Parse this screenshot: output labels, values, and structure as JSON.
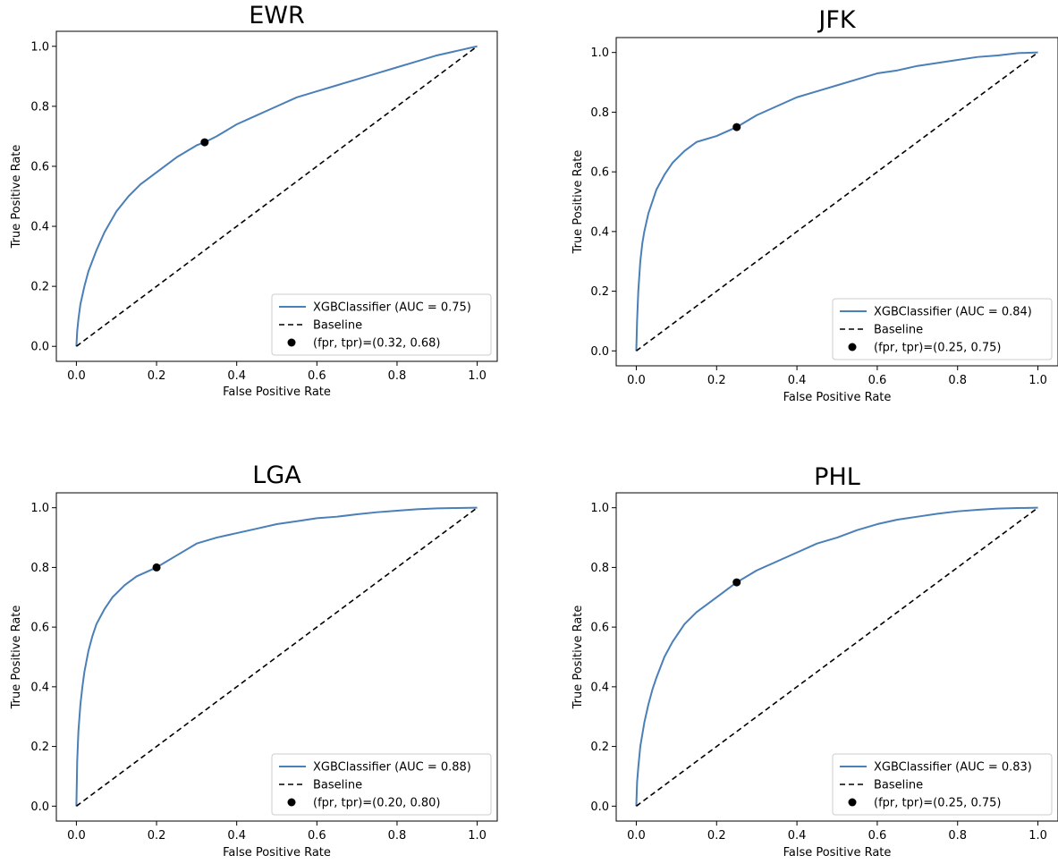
{
  "chart_data": [
    {
      "type": "line",
      "title": "EWR",
      "xlabel": "False Positive Rate",
      "ylabel": "True Positive Rate",
      "xlim": [
        0.0,
        1.0
      ],
      "ylim": [
        0.0,
        1.0
      ],
      "xticks": [
        "0.0",
        "0.2",
        "0.4",
        "0.6",
        "0.8",
        "1.0"
      ],
      "yticks": [
        "0.0",
        "0.2",
        "0.4",
        "0.6",
        "0.8",
        "1.0"
      ],
      "grid": false,
      "legend_position": "lower-right",
      "series": [
        {
          "name": "XGBClassifier (AUC = 0.75)",
          "kind": "line",
          "color": "#4a7fb8",
          "x": [
            0,
            0.002,
            0.005,
            0.01,
            0.02,
            0.03,
            0.05,
            0.07,
            0.1,
            0.13,
            0.16,
            0.2,
            0.25,
            0.3,
            0.32,
            0.35,
            0.4,
            0.45,
            0.5,
            0.55,
            0.6,
            0.65,
            0.7,
            0.75,
            0.8,
            0.85,
            0.9,
            0.95,
            1.0
          ],
          "y": [
            0,
            0.05,
            0.09,
            0.14,
            0.2,
            0.25,
            0.32,
            0.38,
            0.45,
            0.5,
            0.54,
            0.58,
            0.63,
            0.67,
            0.68,
            0.7,
            0.74,
            0.77,
            0.8,
            0.83,
            0.85,
            0.87,
            0.89,
            0.91,
            0.93,
            0.95,
            0.97,
            0.985,
            1.0
          ]
        },
        {
          "name": "Baseline",
          "kind": "dashed",
          "color": "#000000",
          "x": [
            0,
            1
          ],
          "y": [
            0,
            1
          ]
        },
        {
          "name": "(fpr, tpr)=(0.32, 0.68)",
          "kind": "point",
          "color": "#000000",
          "x": [
            0.32
          ],
          "y": [
            0.68
          ]
        }
      ]
    },
    {
      "type": "line",
      "title": "JFK",
      "xlabel": "False Positive Rate",
      "ylabel": "True Positive Rate",
      "xlim": [
        0.0,
        1.0
      ],
      "ylim": [
        0.0,
        1.0
      ],
      "xticks": [
        "0.0",
        "0.2",
        "0.4",
        "0.6",
        "0.8",
        "1.0"
      ],
      "yticks": [
        "0.0",
        "0.2",
        "0.4",
        "0.6",
        "0.8",
        "1.0"
      ],
      "grid": false,
      "legend_position": "lower-right",
      "series": [
        {
          "name": "XGBClassifier (AUC = 0.84)",
          "kind": "line",
          "color": "#4a7fb8",
          "x": [
            0,
            0.002,
            0.005,
            0.01,
            0.015,
            0.02,
            0.03,
            0.04,
            0.05,
            0.07,
            0.09,
            0.12,
            0.15,
            0.2,
            0.25,
            0.3,
            0.35,
            0.4,
            0.45,
            0.5,
            0.55,
            0.6,
            0.65,
            0.7,
            0.75,
            0.8,
            0.85,
            0.9,
            0.95,
            1.0
          ],
          "y": [
            0,
            0.1,
            0.2,
            0.3,
            0.36,
            0.4,
            0.46,
            0.5,
            0.54,
            0.59,
            0.63,
            0.67,
            0.7,
            0.72,
            0.75,
            0.79,
            0.82,
            0.85,
            0.87,
            0.89,
            0.91,
            0.93,
            0.94,
            0.955,
            0.965,
            0.975,
            0.985,
            0.99,
            0.998,
            1.0
          ]
        },
        {
          "name": "Baseline",
          "kind": "dashed",
          "color": "#000000",
          "x": [
            0,
            1
          ],
          "y": [
            0,
            1
          ]
        },
        {
          "name": "(fpr, tpr)=(0.25, 0.75)",
          "kind": "point",
          "color": "#000000",
          "x": [
            0.25
          ],
          "y": [
            0.75
          ]
        }
      ]
    },
    {
      "type": "line",
      "title": "LGA",
      "xlabel": "False Positive Rate",
      "ylabel": "True Positive Rate",
      "xlim": [
        0.0,
        1.0
      ],
      "ylim": [
        0.0,
        1.0
      ],
      "xticks": [
        "0.0",
        "0.2",
        "0.4",
        "0.6",
        "0.8",
        "1.0"
      ],
      "yticks": [
        "0.0",
        "0.2",
        "0.4",
        "0.6",
        "0.8",
        "1.0"
      ],
      "grid": false,
      "legend_position": "lower-right",
      "series": [
        {
          "name": "XGBClassifier (AUC = 0.88)",
          "kind": "line",
          "color": "#4a7fb8",
          "x": [
            0,
            0.002,
            0.005,
            0.01,
            0.015,
            0.02,
            0.03,
            0.04,
            0.05,
            0.07,
            0.09,
            0.12,
            0.15,
            0.2,
            0.25,
            0.3,
            0.35,
            0.4,
            0.45,
            0.5,
            0.55,
            0.6,
            0.65,
            0.7,
            0.75,
            0.8,
            0.85,
            0.9,
            0.95,
            1.0
          ],
          "y": [
            0,
            0.15,
            0.25,
            0.34,
            0.4,
            0.45,
            0.52,
            0.57,
            0.61,
            0.66,
            0.7,
            0.74,
            0.77,
            0.8,
            0.84,
            0.88,
            0.9,
            0.915,
            0.93,
            0.945,
            0.955,
            0.965,
            0.97,
            0.978,
            0.985,
            0.99,
            0.995,
            0.998,
            0.999,
            1.0
          ]
        },
        {
          "name": "Baseline",
          "kind": "dashed",
          "color": "#000000",
          "x": [
            0,
            1
          ],
          "y": [
            0,
            1
          ]
        },
        {
          "name": "(fpr, tpr)=(0.20, 0.80)",
          "kind": "point",
          "color": "#000000",
          "x": [
            0.2
          ],
          "y": [
            0.8
          ]
        }
      ]
    },
    {
      "type": "line",
      "title": "PHL",
      "xlabel": "False Positive Rate",
      "ylabel": "True Positive Rate",
      "xlim": [
        0.0,
        1.0
      ],
      "ylim": [
        0.0,
        1.0
      ],
      "xticks": [
        "0.0",
        "0.2",
        "0.4",
        "0.6",
        "0.8",
        "1.0"
      ],
      "yticks": [
        "0.0",
        "0.2",
        "0.4",
        "0.6",
        "0.8",
        "1.0"
      ],
      "grid": false,
      "legend_position": "lower-right",
      "series": [
        {
          "name": "XGBClassifier (AUC = 0.83)",
          "kind": "line",
          "color": "#4a7fb8",
          "x": [
            0,
            0.002,
            0.005,
            0.01,
            0.02,
            0.03,
            0.04,
            0.05,
            0.07,
            0.09,
            0.12,
            0.15,
            0.2,
            0.25,
            0.3,
            0.35,
            0.4,
            0.45,
            0.5,
            0.55,
            0.6,
            0.65,
            0.7,
            0.75,
            0.8,
            0.85,
            0.9,
            0.95,
            1.0
          ],
          "y": [
            0,
            0.08,
            0.13,
            0.2,
            0.28,
            0.34,
            0.39,
            0.43,
            0.5,
            0.55,
            0.61,
            0.65,
            0.7,
            0.75,
            0.79,
            0.82,
            0.85,
            0.88,
            0.9,
            0.925,
            0.945,
            0.96,
            0.97,
            0.98,
            0.988,
            0.993,
            0.997,
            0.999,
            1.0
          ]
        },
        {
          "name": "Baseline",
          "kind": "dashed",
          "color": "#000000",
          "x": [
            0,
            1
          ],
          "y": [
            0,
            1
          ]
        },
        {
          "name": "(fpr, tpr)=(0.25, 0.75)",
          "kind": "point",
          "color": "#000000",
          "x": [
            0.25
          ],
          "y": [
            0.75
          ]
        }
      ]
    }
  ]
}
